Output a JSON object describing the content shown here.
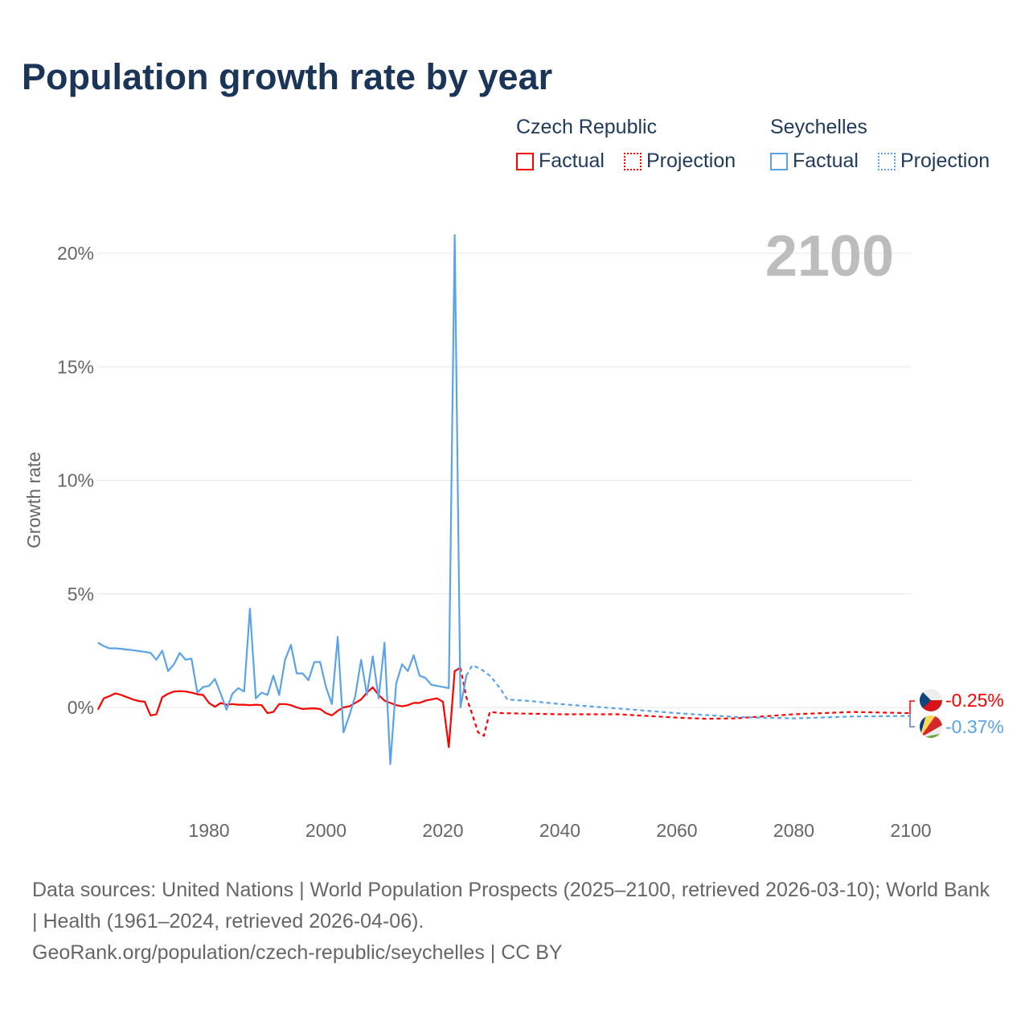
{
  "title": "Population growth rate by year",
  "legend": {
    "groups": [
      {
        "name": "Czech Republic",
        "color": "#ff0000",
        "factual": "Factual",
        "projection": "Projection"
      },
      {
        "name": "Seychelles",
        "color": "#5ba3e8",
        "factual": "Factual",
        "projection": "Projection"
      }
    ]
  },
  "footer": {
    "sources": "Data sources: United Nations | World Population Prospects (2025–2100, retrieved 2026-03-10); World Bank | Health (1961–2024, retrieved 2026-04-06).",
    "link": "GeoRank.org/population/czech-republic/seychelles | CC BY"
  },
  "chart_data": {
    "type": "line",
    "title": "Population growth rate by year",
    "xlabel": "",
    "ylabel": "Growth rate",
    "year_label": "2100",
    "xlim": [
      1961,
      2100
    ],
    "ylim": [
      -4.5,
      21.5
    ],
    "xticks": [
      1980,
      2000,
      2020,
      2040,
      2060,
      2080,
      2100
    ],
    "yticks": [
      0,
      5,
      10,
      15,
      20
    ],
    "ytick_labels": [
      "0%",
      "5%",
      "10%",
      "15%",
      "20%"
    ],
    "grid": true,
    "end_labels": {
      "czech": "-0.25%",
      "seychelles": "-0.37%"
    },
    "series": [
      {
        "name": "Czech Republic Factual",
        "color": "#ff0000",
        "dashed": false,
        "x": [
          1961,
          1962,
          1963,
          1964,
          1965,
          1966,
          1967,
          1968,
          1969,
          1970,
          1971,
          1972,
          1973,
          1974,
          1975,
          1976,
          1977,
          1978,
          1979,
          1980,
          1981,
          1982,
          1983,
          1984,
          1985,
          1986,
          1987,
          1988,
          1989,
          1990,
          1991,
          1992,
          1993,
          1994,
          1995,
          1996,
          1997,
          1998,
          1999,
          2000,
          2001,
          2002,
          2003,
          2004,
          2005,
          2006,
          2007,
          2008,
          2009,
          2010,
          2011,
          2012,
          2013,
          2014,
          2015,
          2016,
          2017,
          2018,
          2019,
          2020,
          2021,
          2022,
          2023
        ],
        "y": [
          -0.1,
          0.4,
          0.5,
          0.62,
          0.55,
          0.45,
          0.35,
          0.28,
          0.25,
          -0.35,
          -0.3,
          0.45,
          0.6,
          0.7,
          0.72,
          0.7,
          0.65,
          0.58,
          0.55,
          0.2,
          0.03,
          0.2,
          0.12,
          0.15,
          0.12,
          0.12,
          0.1,
          0.12,
          0.1,
          -0.25,
          -0.2,
          0.15,
          0.15,
          0.1,
          0.0,
          -0.07,
          -0.05,
          -0.04,
          -0.07,
          -0.25,
          -0.35,
          -0.15,
          0.0,
          0.05,
          0.2,
          0.35,
          0.65,
          0.88,
          0.55,
          0.3,
          0.2,
          0.1,
          0.05,
          0.1,
          0.2,
          0.2,
          0.3,
          0.35,
          0.4,
          0.25,
          -1.75,
          1.6,
          1.75
        ]
      },
      {
        "name": "Czech Republic Projection",
        "color": "#ff0000",
        "dashed": true,
        "x": [
          2023,
          2024,
          2025,
          2026,
          2027,
          2028,
          2030,
          2040,
          2050,
          2060,
          2065,
          2070,
          2080,
          2090,
          2100
        ],
        "y": [
          1.75,
          0.45,
          -0.3,
          -1.1,
          -1.25,
          -0.2,
          -0.25,
          -0.3,
          -0.3,
          -0.45,
          -0.5,
          -0.48,
          -0.3,
          -0.2,
          -0.25
        ]
      },
      {
        "name": "Seychelles Factual",
        "color": "#5ba3e8",
        "dashed": false,
        "x": [
          1961,
          1962,
          1963,
          1964,
          1965,
          1966,
          1967,
          1968,
          1969,
          1970,
          1971,
          1972,
          1973,
          1974,
          1975,
          1976,
          1977,
          1978,
          1979,
          1980,
          1981,
          1982,
          1983,
          1984,
          1985,
          1986,
          1987,
          1988,
          1989,
          1990,
          1991,
          1992,
          1993,
          1994,
          1995,
          1996,
          1997,
          1998,
          1999,
          2000,
          2001,
          2002,
          2003,
          2004,
          2005,
          2006,
          2007,
          2008,
          2009,
          2010,
          2011,
          2012,
          2013,
          2014,
          2015,
          2016,
          2017,
          2018,
          2019,
          2020,
          2021,
          2022,
          2023,
          2024
        ],
        "y": [
          2.85,
          2.7,
          2.6,
          2.6,
          2.58,
          2.55,
          2.52,
          2.48,
          2.45,
          2.4,
          2.1,
          2.5,
          1.6,
          1.9,
          2.4,
          2.1,
          2.15,
          0.65,
          0.9,
          0.95,
          1.25,
          0.6,
          -0.1,
          0.6,
          0.85,
          0.7,
          4.35,
          0.4,
          0.65,
          0.55,
          1.4,
          0.55,
          2.1,
          2.75,
          1.5,
          1.5,
          1.2,
          2.0,
          2.0,
          0.9,
          0.15,
          3.1,
          -1.1,
          -0.35,
          0.5,
          2.1,
          0.55,
          2.25,
          0.4,
          2.85,
          -2.5,
          1.05,
          1.9,
          1.6,
          2.3,
          1.4,
          1.3,
          1.0,
          0.95,
          0.9,
          0.85,
          20.8,
          0.0,
          1.4
        ]
      },
      {
        "name": "Seychelles Projection",
        "color": "#5ba3e8",
        "dashed": true,
        "x": [
          2024,
          2025,
          2026,
          2027,
          2028,
          2029,
          2030,
          2031,
          2035,
          2040,
          2050,
          2060,
          2070,
          2080,
          2090,
          2100
        ],
        "y": [
          1.4,
          1.85,
          1.75,
          1.6,
          1.4,
          1.1,
          0.75,
          0.35,
          0.28,
          0.15,
          -0.05,
          -0.25,
          -0.42,
          -0.48,
          -0.4,
          -0.37
        ]
      }
    ]
  }
}
